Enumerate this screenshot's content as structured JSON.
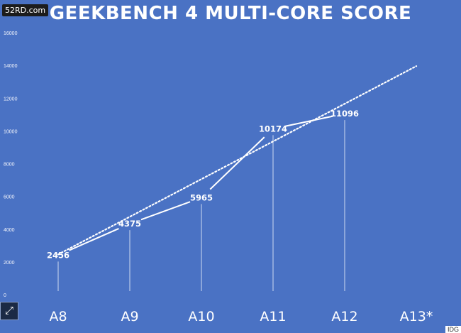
{
  "watermark": "52RD.com",
  "credit": "IDG",
  "chart_data": {
    "type": "line",
    "title": "GEEKBENCH 4 MULTI-CORE SCORE",
    "xlabel": "",
    "ylabel": "",
    "categories": [
      "A8",
      "A9",
      "A10",
      "A11",
      "A12",
      "A13*"
    ],
    "series": [
      {
        "values": [
          2456,
          4375,
          5965,
          10174,
          11096,
          null
        ]
      }
    ],
    "trendline": {
      "style": "dotted",
      "x_range": [
        "A8",
        "A13*"
      ],
      "y_values": [
        2500,
        14000
      ]
    },
    "yticks": [
      0,
      2000,
      4000,
      6000,
      8000,
      10000,
      12000,
      14000,
      16000
    ],
    "ylim": [
      0,
      16000
    ],
    "grid": false,
    "legend": "none",
    "colors": {
      "background": "#4a72c4",
      "line": "#ffffff"
    }
  }
}
